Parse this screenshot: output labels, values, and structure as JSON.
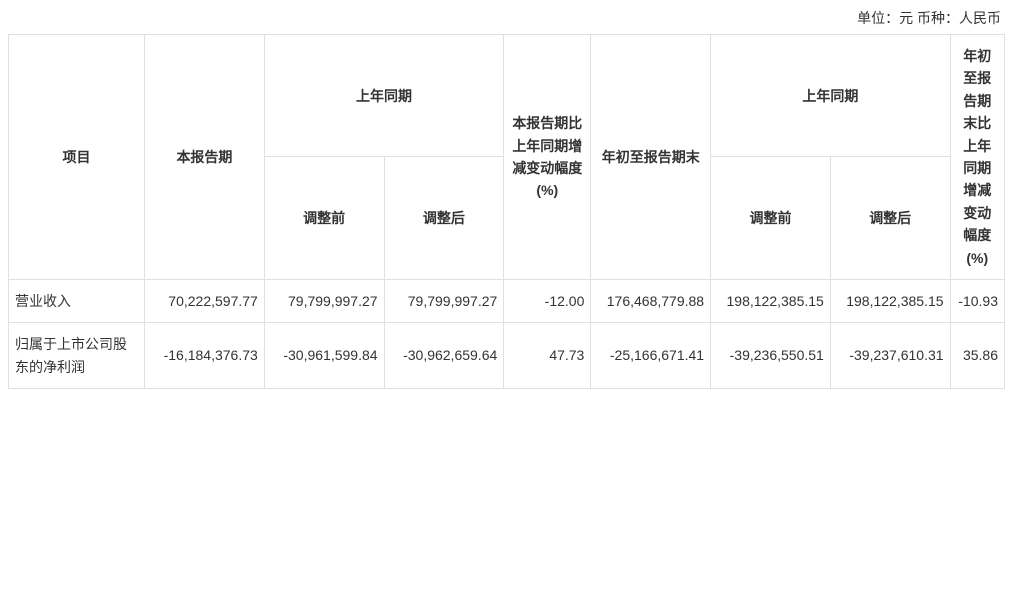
{
  "unit_label": "单位：元 币种：人民币",
  "headers": {
    "item": "项目",
    "current_period": "本报告期",
    "prior_period": "上年同期",
    "pct_change_period": "本报告期比上年同期增减变动幅度(%)",
    "ytd_end": "年初至报告期末",
    "pct_change_ytd": "年初至报告期末比上年同期增减变动幅度(%)",
    "before_adj": "调整前",
    "after_adj": "调整后"
  },
  "rows": [
    {
      "label": "营业收入",
      "current": "70,222,597.77",
      "prev_before": "79,799,997.27",
      "prev_after": "79,799,997.27",
      "pct1": "-12.00",
      "ytd": "176,468,779.88",
      "ytd_prev_before": "198,122,385.15",
      "ytd_prev_after": "198,122,385.15",
      "pct2": "-10.93"
    },
    {
      "label": "归属于上市公司股东的净利润",
      "current": "-16,184,376.73",
      "prev_before": "-30,961,599.84",
      "prev_after": "-30,962,659.64",
      "pct1": "47.73",
      "ytd": "-25,166,671.41",
      "ytd_prev_before": "-39,236,550.51",
      "ytd_prev_after": "-39,237,610.31",
      "pct2": "35.86"
    }
  ],
  "styling": {
    "border_color": "#e0e0e0",
    "text_color": "#333333",
    "background_color": "#ffffff",
    "font_size": 14,
    "header_font_weight": "bold",
    "cell_text_align": "right",
    "label_text_align": "left"
  }
}
